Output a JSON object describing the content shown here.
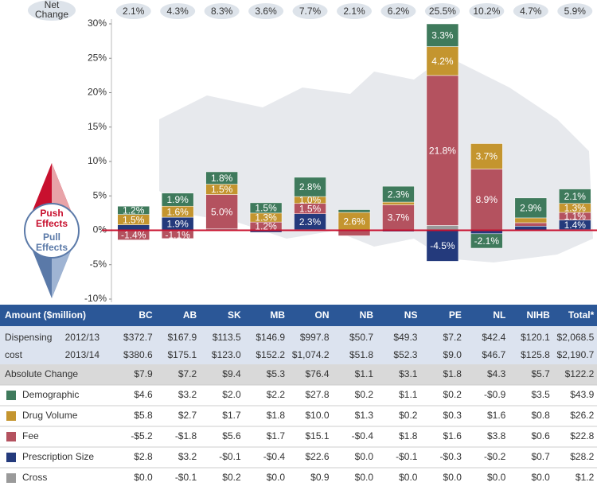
{
  "chart_data": {
    "type": "stacked_bar",
    "net_change": {
      "label": [
        "Net",
        "Change"
      ],
      "values": [
        2.1,
        4.3,
        8.3,
        3.6,
        7.7,
        2.1,
        6.2,
        25.5,
        10.2,
        4.7,
        5.9
      ],
      "value_labels": [
        "2.1%",
        "4.3%",
        "8.3%",
        "3.6%",
        "7.7%",
        "2.1%",
        "6.2%",
        "25.5%",
        "10.2%",
        "4.7%",
        "5.9%"
      ]
    },
    "categories": [
      "BC",
      "AB",
      "SK",
      "MB",
      "ON",
      "NB",
      "NS",
      "PE",
      "NL",
      "NIHB",
      "Total*"
    ],
    "series": [
      {
        "name": "Demographic",
        "color": "#3f7a5c",
        "values": [
          1.2,
          1.9,
          1.8,
          1.5,
          2.8,
          0.4,
          2.3,
          3.3,
          -2.1,
          2.9,
          2.1
        ],
        "value_labels": [
          "1.2%",
          "1.9%",
          "1.8%",
          "1.5%",
          "2.8%",
          null,
          "2.3%",
          "3.3%",
          "-2.1%",
          "2.9%",
          "2.1%"
        ]
      },
      {
        "name": "Drug Volume",
        "color": "#c4952f",
        "values": [
          1.5,
          1.6,
          1.5,
          1.3,
          1.0,
          2.6,
          0.4,
          4.2,
          3.7,
          0.7,
          1.3
        ],
        "value_labels": [
          "1.5%",
          "1.6%",
          "1.5%",
          "1.3%",
          "1.0%",
          "2.6%",
          null,
          "4.2%",
          "3.7%",
          null,
          "1.3%"
        ]
      },
      {
        "name": "Fee",
        "color": "#b4525f",
        "values": [
          -1.4,
          -1.1,
          5.0,
          1.2,
          1.5,
          -0.8,
          3.7,
          21.8,
          8.9,
          0.5,
          1.1
        ],
        "value_labels": [
          "-1.4%",
          "-1.1%",
          "5.0%",
          "1.2%",
          "1.5%",
          null,
          "3.7%",
          "21.8%",
          "8.9%",
          null,
          "1.1%"
        ]
      },
      {
        "name": "Prescription Size",
        "color": "#243a7c",
        "values": [
          0.8,
          1.9,
          -0.1,
          -0.3,
          2.3,
          0,
          -0.2,
          -4.5,
          -0.5,
          0.6,
          1.4
        ],
        "value_labels": [
          null,
          "1.9%",
          null,
          null,
          "2.3%",
          null,
          null,
          "-4.5%",
          null,
          null,
          "1.4%"
        ]
      },
      {
        "name": "Cross",
        "color": "#9a9a9a",
        "values": [
          0,
          -0.1,
          0.2,
          0,
          0.1,
          0,
          0,
          0.7,
          0,
          0,
          0.1
        ],
        "value_labels": [
          null,
          null,
          null,
          null,
          null,
          null,
          null,
          null,
          null,
          null,
          null
        ]
      }
    ],
    "ylim": [
      -10,
      30
    ],
    "yticks": [
      {
        "value": -10,
        "label": "-10%"
      },
      {
        "value": -5,
        "label": "-5%"
      },
      {
        "value": 0,
        "label": "0%"
      },
      {
        "value": 5,
        "label": "5%"
      },
      {
        "value": 10,
        "label": "10%"
      },
      {
        "value": 15,
        "label": "15%"
      },
      {
        "value": 20,
        "label": "20%"
      },
      {
        "value": 25,
        "label": "25%"
      },
      {
        "value": 30,
        "label": "30%"
      }
    ],
    "zero_line_color": "#c8102e",
    "compass": {
      "push": [
        "Push",
        "Effects"
      ],
      "pull": [
        "Pull",
        "Effects"
      ]
    }
  },
  "table": {
    "header": "Amount ($million)",
    "dispensing": {
      "label": [
        "Dispensing",
        "cost"
      ],
      "years": [
        "2012/13",
        "2013/14"
      ],
      "rows": [
        [
          "$372.7",
          "$167.9",
          "$113.5",
          "$146.9",
          "$997.8",
          "$50.7",
          "$49.3",
          "$7.2",
          "$42.4",
          "$120.1",
          "$2,068.5"
        ],
        [
          "$380.6",
          "$175.1",
          "$123.0",
          "$152.2",
          "$1,074.2",
          "$51.8",
          "$52.3",
          "$9.0",
          "$46.7",
          "$125.8",
          "$2,190.7"
        ]
      ]
    },
    "absolute_change": {
      "label": "Absolute Change",
      "cells": [
        "$7.9",
        "$7.2",
        "$9.4",
        "$5.3",
        "$76.4",
        "$1.1",
        "$3.1",
        "$1.8",
        "$4.3",
        "$5.7",
        "$122.2"
      ]
    },
    "effects": [
      [
        "$4.6",
        "$3.2",
        "$2.0",
        "$2.2",
        "$27.8",
        "$0.2",
        "$1.1",
        "$0.2",
        "-$0.9",
        "$3.5",
        "$43.9"
      ],
      [
        "$5.8",
        "$2.7",
        "$1.7",
        "$1.8",
        "$10.0",
        "$1.3",
        "$0.2",
        "$0.3",
        "$1.6",
        "$0.8",
        "$26.2"
      ],
      [
        "-$5.2",
        "-$1.8",
        "$5.6",
        "$1.7",
        "$15.1",
        "-$0.4",
        "$1.8",
        "$1.6",
        "$3.8",
        "$0.6",
        "$22.8"
      ],
      [
        "$2.8",
        "$3.2",
        "-$0.1",
        "-$0.4",
        "$22.6",
        "$0.0",
        "-$0.1",
        "-$0.3",
        "-$0.2",
        "$0.7",
        "$28.2"
      ],
      [
        "$0.0",
        "-$0.1",
        "$0.2",
        "$0.0",
        "$0.9",
        "$0.0",
        "$0.0",
        "$0.0",
        "$0.0",
        "$0.0",
        "$1.2"
      ]
    ]
  }
}
